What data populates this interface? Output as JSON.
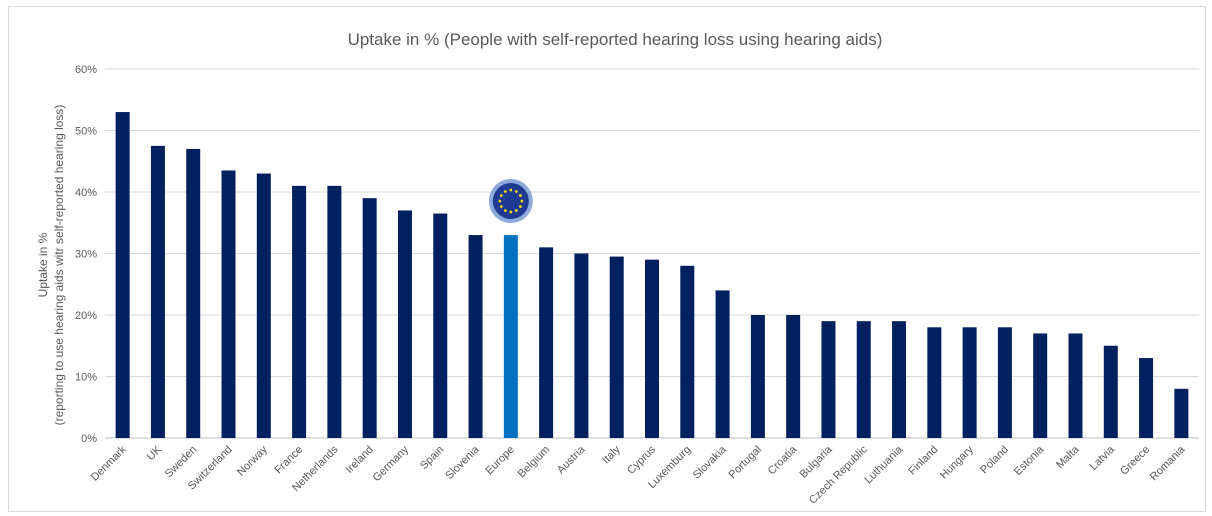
{
  "chart_data": {
    "type": "bar",
    "title": "Uptake in % (People with self-reported hearing loss using hearing aids)",
    "ylabel_line1": "Uptake in %",
    "ylabel_line2": "(reporting to use hearing aids witr self-reported hearing loss)",
    "xlabel": "",
    "ylim": [
      0,
      60
    ],
    "yticks": [
      "0%",
      "10%",
      "20%",
      "30%",
      "40%",
      "50%",
      "60%"
    ],
    "ytick_values": [
      0,
      10,
      20,
      30,
      40,
      50,
      60
    ],
    "grid": true,
    "categories": [
      "Denmark",
      "UK",
      "Sweden",
      "Switzerland",
      "Norway",
      "France",
      "Netherlands",
      "Ireland",
      "Germany",
      "Spain",
      "Slovenia",
      "Europe",
      "Belgium",
      "Austria",
      "Italy",
      "Cyprus",
      "Luxemburg",
      "Slovakia",
      "Portugal",
      "Croatia",
      "Bulgaria",
      "Czech Republic",
      "Luthuania",
      "Finland",
      "Hungary",
      "Poland",
      "Estonia",
      "Malta",
      "Latvia",
      "Greece",
      "Romania"
    ],
    "values": [
      53,
      47.5,
      47,
      43.5,
      43,
      41,
      41,
      39,
      37,
      36.5,
      33,
      33,
      31,
      30,
      29.5,
      29,
      28,
      24,
      20,
      20,
      19,
      19,
      19,
      18,
      18,
      18,
      17,
      17,
      15,
      13,
      8
    ],
    "highlight_category": "Europe",
    "colors": {
      "bar": "#002060",
      "highlight": "#0070c0",
      "grid": "#d9d9d9",
      "text": "#595959",
      "flag_blue": "#1f3a93",
      "flag_star": "#ffd700"
    },
    "annotation_icon": "eu-flag-icon"
  }
}
